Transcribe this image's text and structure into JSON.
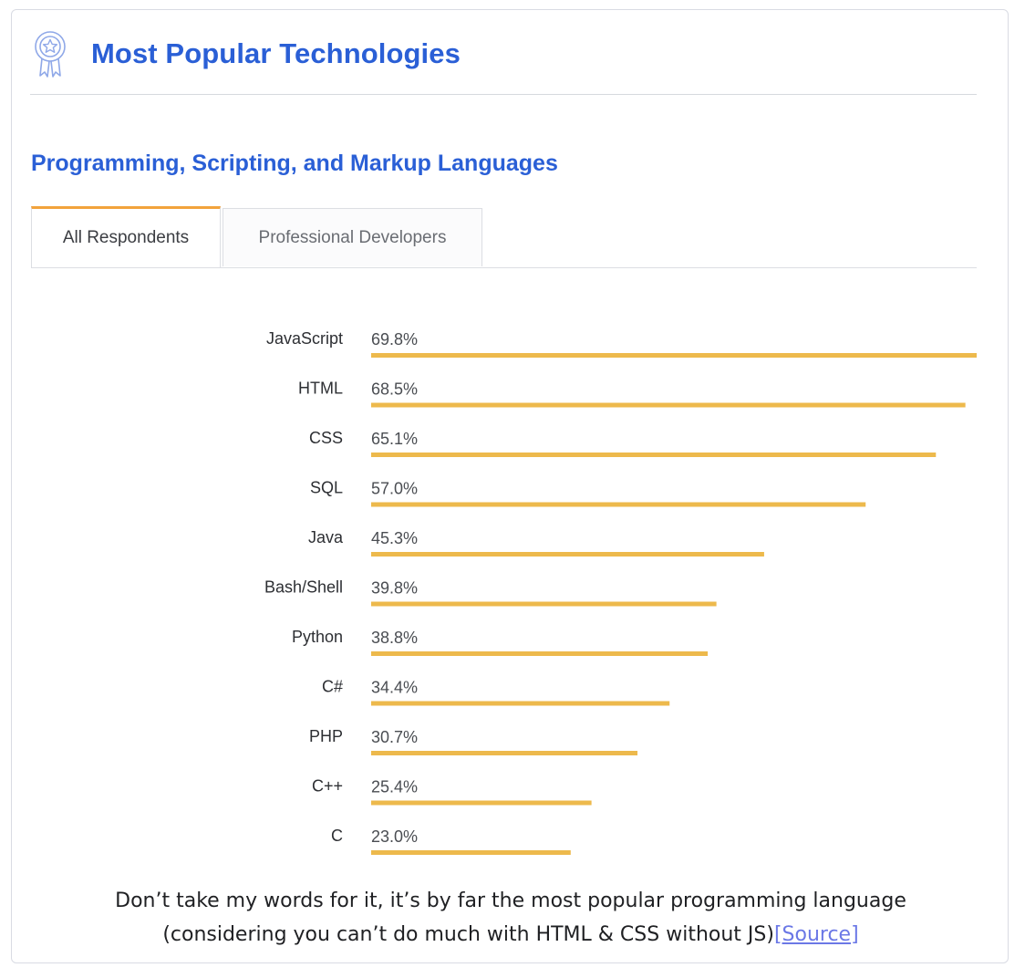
{
  "header": {
    "icon": "award-ribbon-icon",
    "title": "Most Popular Technologies"
  },
  "section": {
    "title": "Programming, Scripting, and Markup Languages"
  },
  "tabs": [
    {
      "label": "All Respondents",
      "active": true
    },
    {
      "label": "Professional Developers",
      "active": false
    }
  ],
  "colors": {
    "accent": "#2a5fd6",
    "bar": "#edb94c",
    "active_tab_border": "#f2a33c",
    "link": "#6b78e6"
  },
  "chart_data": {
    "type": "bar",
    "orientation": "horizontal",
    "categories": [
      "JavaScript",
      "HTML",
      "CSS",
      "SQL",
      "Java",
      "Bash/Shell",
      "Python",
      "C#",
      "PHP",
      "C++",
      "C"
    ],
    "values": [
      69.8,
      68.5,
      65.1,
      57.0,
      45.3,
      39.8,
      38.8,
      34.4,
      30.7,
      25.4,
      23.0
    ],
    "value_labels": [
      "69.8%",
      "68.5%",
      "65.1%",
      "57.0%",
      "45.3%",
      "39.8%",
      "38.8%",
      "34.4%",
      "30.7%",
      "25.4%",
      "23.0%"
    ],
    "unit": "%",
    "xlim": [
      0,
      69.8
    ],
    "grid": false,
    "legend": "none"
  },
  "caption": {
    "line1": "Don’t take my words for it, it’s by far the most popular programming language",
    "line2": "(considering you can’t do much with HTML & CSS without JS)",
    "link_label": "[Source]"
  }
}
